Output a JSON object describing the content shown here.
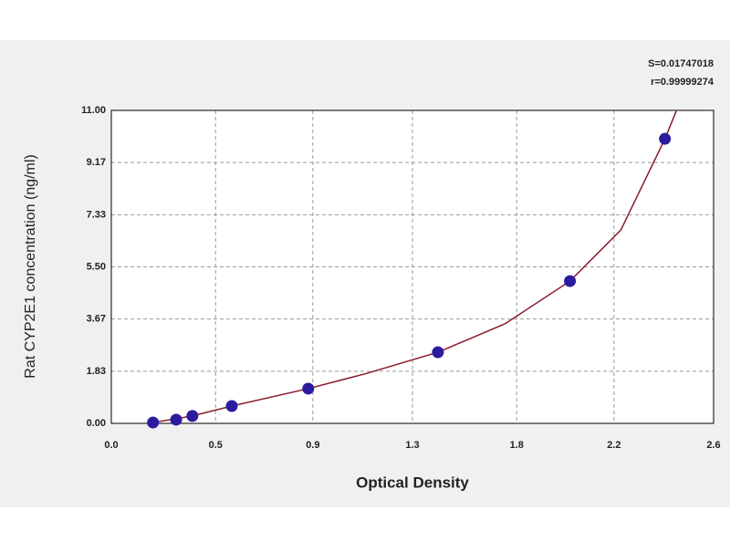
{
  "chart_data": {
    "type": "scatter",
    "x_label": "Optical Density",
    "y_label": "Rat CYP2E1 concentration (ng/ml)",
    "annotations": [
      "S=0.01747018",
      "r=0.99999274"
    ],
    "series": [
      {
        "x": [
          0.18,
          0.28,
          0.35,
          0.52,
          0.85,
          1.41,
          1.98,
          2.39
        ],
        "values": [
          0.03,
          0.13,
          0.26,
          0.61,
          1.22,
          2.5,
          5.0,
          10.0
        ],
        "color": "#2b1c9e"
      }
    ],
    "curve": {
      "x": [
        0.18,
        0.35,
        0.52,
        0.85,
        1.1,
        1.41,
        1.7,
        1.98,
        2.2,
        2.39,
        2.44
      ],
      "values": [
        0.03,
        0.26,
        0.61,
        1.22,
        1.75,
        2.5,
        3.5,
        5.0,
        6.8,
        10.0,
        11.0
      ],
      "color": "#8b1a2a"
    },
    "xlim": [
      0,
      2.6
    ],
    "xticks": [
      {
        "value": 0,
        "label": "0.0"
      },
      {
        "value": 0.45,
        "label": "0.5"
      },
      {
        "value": 0.87,
        "label": "0.9"
      },
      1.3,
      {
        "value": 1.75,
        "label": "1.8"
      },
      {
        "value": 2.17,
        "label": "2.2"
      },
      2.6
    ],
    "ylim": [
      0,
      11
    ],
    "yticks": [
      {
        "value": 0,
        "label": "0.00"
      },
      1.83,
      3.67,
      {
        "value": 5.5,
        "label": "5.50"
      },
      7.33,
      9.17,
      {
        "value": 11,
        "label": "11.00"
      }
    ],
    "grid": true
  }
}
